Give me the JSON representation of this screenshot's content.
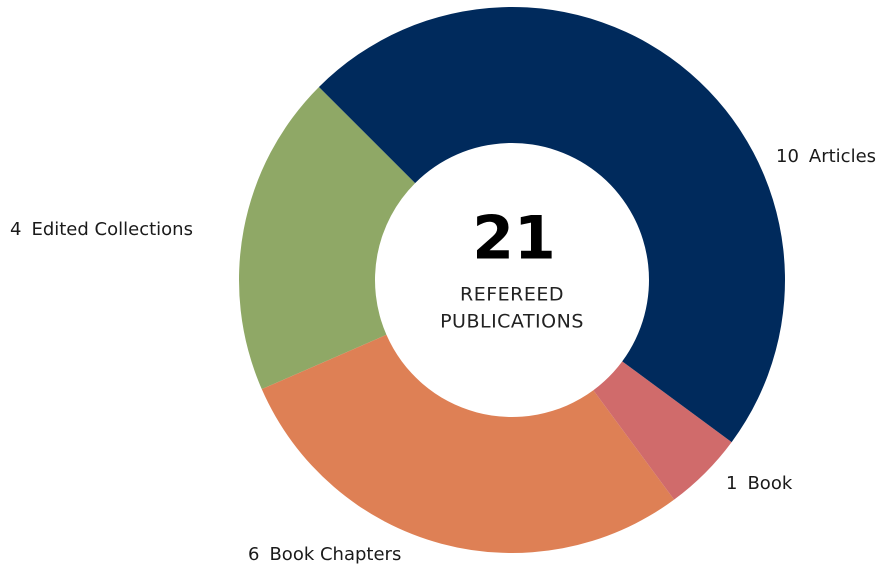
{
  "chart_data": {
    "type": "donut",
    "categories": [
      "Articles",
      "Book",
      "Book Chapters",
      "Edited Collections"
    ],
    "values": [
      10,
      1,
      6,
      4
    ],
    "colors": [
      "#002a5c",
      "#d06b6b",
      "#de8055",
      "#8fa866"
    ],
    "center_value": 21,
    "center_label": [
      "REFEREED",
      "PUBLICATIONS"
    ]
  }
}
